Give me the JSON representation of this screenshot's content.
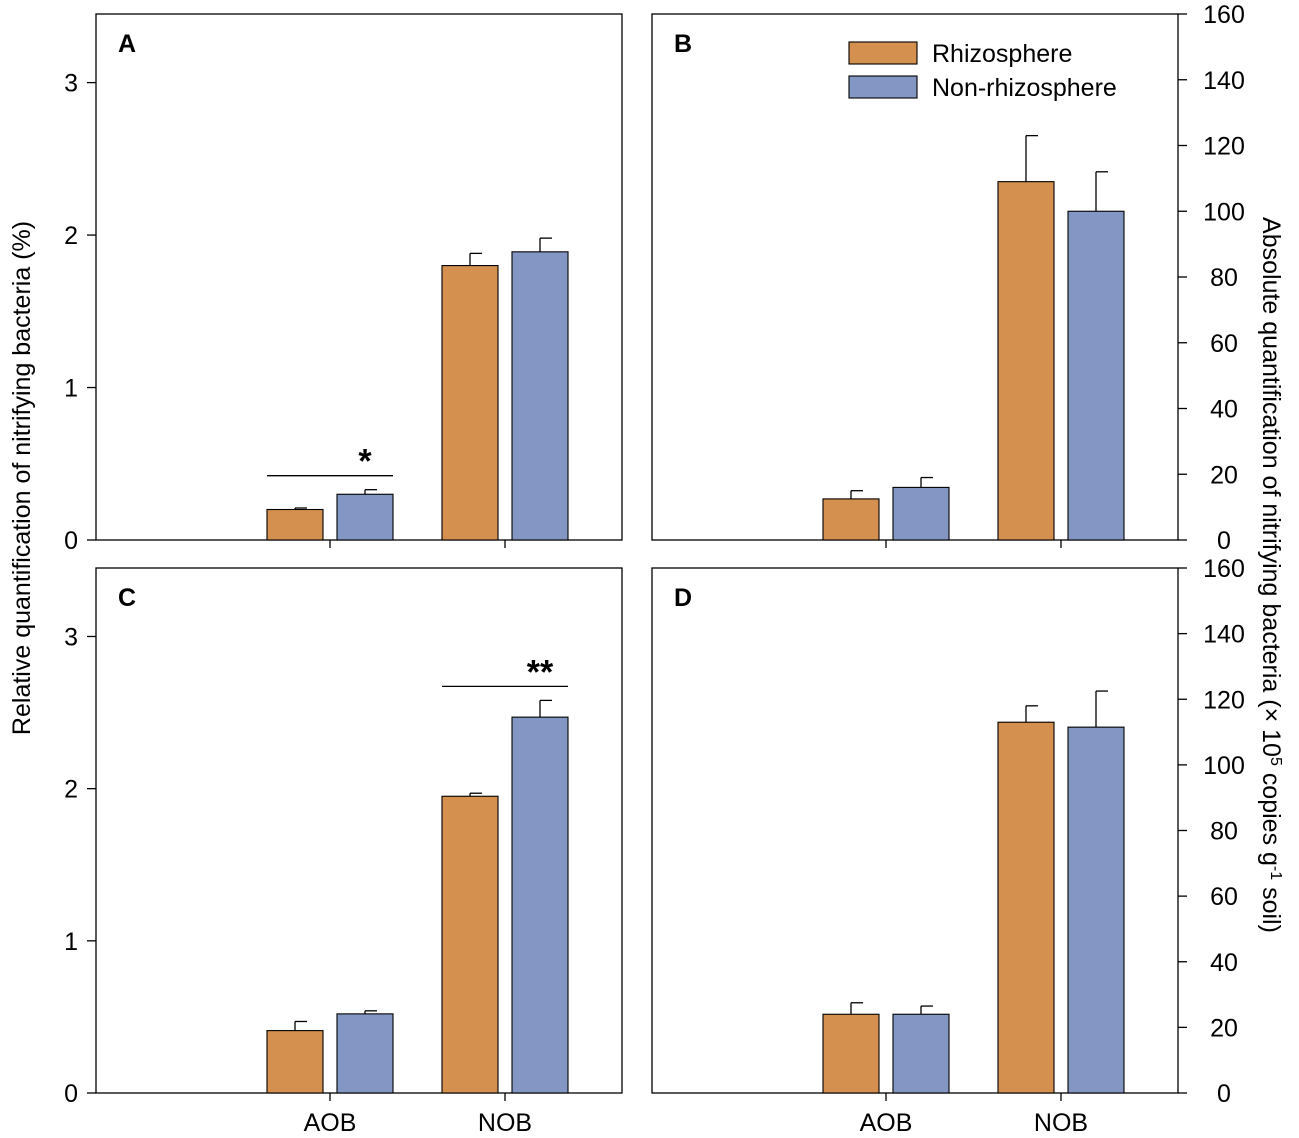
{
  "colors": {
    "rhizosphere": "#D4904F",
    "non_rhizosphere": "#8497C4",
    "axis": "#000000"
  },
  "left_axis_title": "Relative quantification of nitrifying bacteria (%)",
  "right_axis_title": {
    "main": "Absolute quantification of nitrifying bacteria (× 10",
    "sup5": "5",
    "mid": " copies g",
    "supneg1": "-1",
    "end": " soil)"
  },
  "legend": [
    {
      "key": "rhizosphere",
      "label": "Rhizosphere"
    },
    {
      "key": "non_rhizosphere",
      "label": "Non-rhizosphere"
    }
  ],
  "chart_data": [
    {
      "panel": "A",
      "type": "bar",
      "categories": [
        "AOB",
        "NOB"
      ],
      "axis": "left",
      "ylim": [
        0,
        3.35
      ],
      "yticks": [
        0,
        1,
        2,
        3
      ],
      "series": [
        {
          "name": "Rhizosphere",
          "key": "rhizosphere",
          "values": [
            0.2,
            1.8
          ],
          "errors": [
            0.01,
            0.08
          ]
        },
        {
          "name": "Non-rhizosphere",
          "key": "non_rhizosphere",
          "values": [
            0.3,
            1.89
          ],
          "errors": [
            0.03,
            0.09
          ]
        }
      ],
      "significance": [
        {
          "category": "AOB",
          "label": "*"
        }
      ],
      "show_xticklabels": false
    },
    {
      "panel": "B",
      "type": "bar",
      "categories": [
        "AOB",
        "NOB"
      ],
      "axis": "right",
      "ylim": [
        0,
        160
      ],
      "yticks": [
        0,
        20,
        40,
        60,
        80,
        100,
        120,
        140,
        160
      ],
      "series": [
        {
          "name": "Rhizosphere",
          "key": "rhizosphere",
          "values": [
            12.5,
            109
          ],
          "errors": [
            2.5,
            14
          ]
        },
        {
          "name": "Non-rhizosphere",
          "key": "non_rhizosphere",
          "values": [
            16,
            100
          ],
          "errors": [
            3,
            12
          ]
        }
      ],
      "significance": [],
      "show_xticklabels": false,
      "show_legend": true
    },
    {
      "panel": "C",
      "type": "bar",
      "categories": [
        "AOB",
        "NOB"
      ],
      "axis": "left",
      "ylim": [
        0,
        3.35
      ],
      "yticks": [
        0,
        1,
        2,
        3
      ],
      "series": [
        {
          "name": "Rhizosphere",
          "key": "rhizosphere",
          "values": [
            0.41,
            1.95
          ],
          "errors": [
            0.06,
            0.02
          ]
        },
        {
          "name": "Non-rhizosphere",
          "key": "non_rhizosphere",
          "values": [
            0.52,
            2.47
          ],
          "errors": [
            0.02,
            0.11
          ]
        }
      ],
      "significance": [
        {
          "category": "NOB",
          "label": "**"
        }
      ],
      "show_xticklabels": true
    },
    {
      "panel": "D",
      "type": "bar",
      "categories": [
        "AOB",
        "NOB"
      ],
      "axis": "right",
      "ylim": [
        0,
        160
      ],
      "yticks": [
        0,
        20,
        40,
        60,
        80,
        100,
        120,
        140,
        160
      ],
      "series": [
        {
          "name": "Rhizosphere",
          "key": "rhizosphere",
          "values": [
            24,
            113
          ],
          "errors": [
            3.5,
            5
          ]
        },
        {
          "name": "Non-rhizosphere",
          "key": "non_rhizosphere",
          "values": [
            24,
            111.5
          ],
          "errors": [
            2.5,
            11
          ]
        }
      ],
      "significance": [],
      "show_xticklabels": true
    }
  ]
}
